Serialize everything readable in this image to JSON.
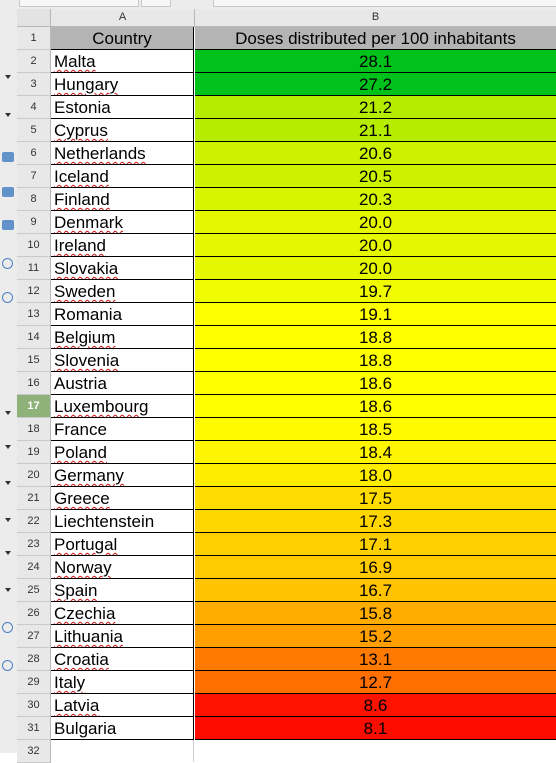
{
  "columns": [
    "A",
    "B"
  ],
  "header": {
    "row_number": "1",
    "country": "Country",
    "value": "Doses distributed per 100 inhabitants"
  },
  "rows": [
    {
      "n": "2",
      "country": "Malta",
      "value": "28.1",
      "color": "#00c21a"
    },
    {
      "n": "3",
      "country": "Hungary",
      "value": "27.2",
      "color": "#00c21a"
    },
    {
      "n": "4",
      "country": "Estonia",
      "value": "21.2",
      "color": "#b5ec00"
    },
    {
      "n": "5",
      "country": "Cyprus",
      "value": "21.1",
      "color": "#b5ec00"
    },
    {
      "n": "6",
      "country": "Netherlands",
      "value": "20.6",
      "color": "#ccf200"
    },
    {
      "n": "7",
      "country": "Iceland",
      "value": "20.5",
      "color": "#ccf200"
    },
    {
      "n": "8",
      "country": "Finland",
      "value": "20.3",
      "color": "#d8f500"
    },
    {
      "n": "9",
      "country": "Denmark",
      "value": "20.0",
      "color": "#e6f800"
    },
    {
      "n": "10",
      "country": "Ireland",
      "value": "20.0",
      "color": "#e6f800"
    },
    {
      "n": "11",
      "country": "Slovakia",
      "value": "20.0",
      "color": "#e6f800"
    },
    {
      "n": "12",
      "country": "Sweden",
      "value": "19.7",
      "color": "#f0fb00"
    },
    {
      "n": "13",
      "country": "Romania",
      "value": "19.1",
      "color": "#fdfe00"
    },
    {
      "n": "14",
      "country": "Belgium",
      "value": "18.8",
      "color": "#ffff00"
    },
    {
      "n": "15",
      "country": "Slovenia",
      "value": "18.8",
      "color": "#ffff00"
    },
    {
      "n": "16",
      "country": "Austria",
      "value": "18.6",
      "color": "#ffff00"
    },
    {
      "n": "17",
      "country": "Luxembourg",
      "value": "18.6",
      "color": "#ffff00"
    },
    {
      "n": "18",
      "country": "France",
      "value": "18.5",
      "color": "#fffa00"
    },
    {
      "n": "19",
      "country": "Poland",
      "value": "18.4",
      "color": "#fff500"
    },
    {
      "n": "20",
      "country": "Germany",
      "value": "18.0",
      "color": "#ffed00"
    },
    {
      "n": "21",
      "country": "Greece",
      "value": "17.5",
      "color": "#ffdd00"
    },
    {
      "n": "22",
      "country": "Liechtenstein",
      "value": "17.3",
      "color": "#ffd600"
    },
    {
      "n": "23",
      "country": "Portugal",
      "value": "17.1",
      "color": "#ffd000"
    },
    {
      "n": "24",
      "country": "Norway",
      "value": "16.9",
      "color": "#ffca00"
    },
    {
      "n": "25",
      "country": "Spain",
      "value": "16.7",
      "color": "#ffc300"
    },
    {
      "n": "26",
      "country": "Czechia",
      "value": "15.8",
      "color": "#ffad00"
    },
    {
      "n": "27",
      "country": "Lithuania",
      "value": "15.2",
      "color": "#ffa000"
    },
    {
      "n": "28",
      "country": "Croatia",
      "value": "13.1",
      "color": "#ff7a00"
    },
    {
      "n": "29",
      "country": "Italy",
      "value": "12.7",
      "color": "#ff6e00"
    },
    {
      "n": "30",
      "country": "Latvia",
      "value": "8.6",
      "color": "#ff1200"
    },
    {
      "n": "31",
      "country": "Bulgaria",
      "value": "8.1",
      "color": "#ff0c00"
    }
  ],
  "empty_row_number": "32",
  "selected_row": "17",
  "spellcheck_flagged": [
    "Malta",
    "Hungary",
    "Cyprus",
    "Netherlands",
    "Iceland",
    "Finland",
    "Denmark",
    "Ireland",
    "Slovakia",
    "Sweden",
    "Belgium",
    "Slovenia",
    "Luxembourg",
    "Poland",
    "Germany",
    "Greece",
    "Portugal",
    "Norway",
    "Spain",
    "Czechia",
    "Lithuania",
    "Croatia",
    "Italy",
    "Latvia"
  ]
}
